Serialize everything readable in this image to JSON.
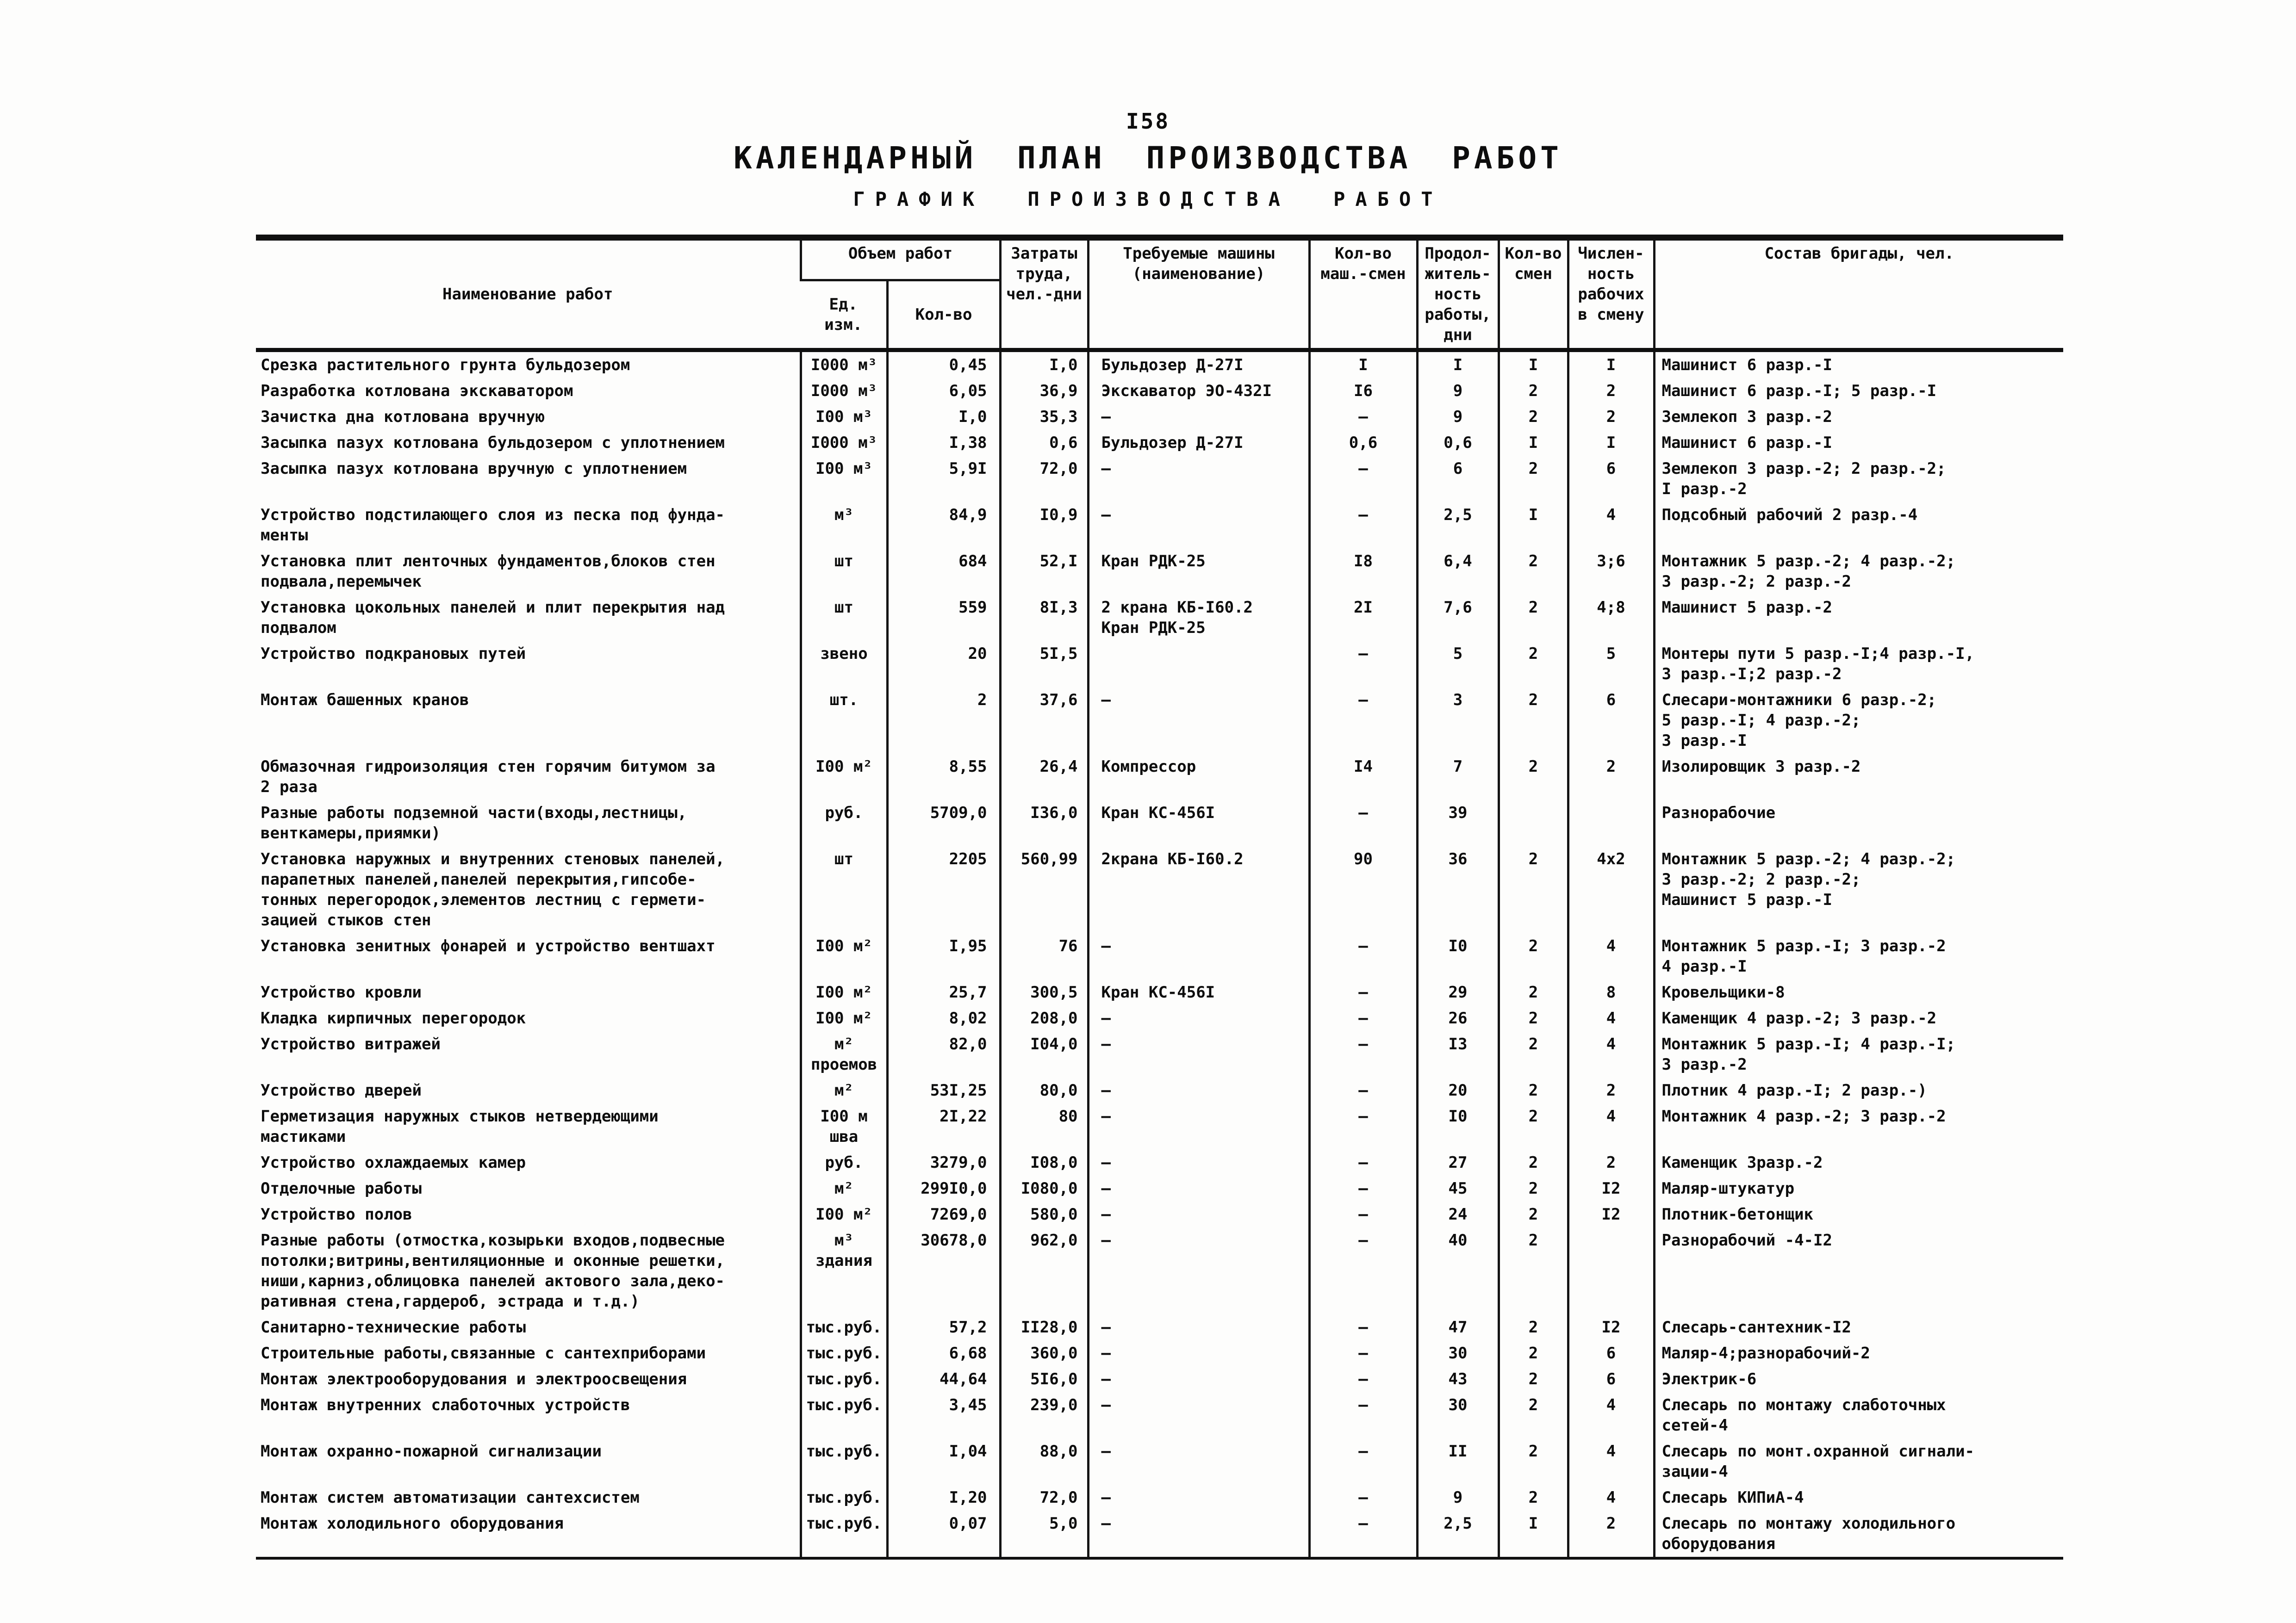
{
  "page": {
    "number": "I58",
    "title": "КАЛЕНДАРНЫЙ ПЛАН ПРОИЗВОДСТВА РАБОТ",
    "subtitle": "ГРАФИК ПРОИЗВОДСТВА РАБОТ"
  },
  "table": {
    "headers": {
      "name": "Наименование работ",
      "volume_group": "Объем работ",
      "unit": "Ед.\nизм.",
      "qty": "Кол-во",
      "labor": "Затраты\nтруда,\nчел.-дни",
      "machines": "Требуемые машины\n(наименование)",
      "machine_shifts": "Кол-во\nмаш.-смен",
      "duration": "Продол-\nжитель-\nность\nработы,\nдни",
      "shifts": "Кол-во\nсмен",
      "crew_size": "Числен-\nность\nрабочих\nв смену",
      "brigade": "Состав  бригады, чел."
    },
    "rows": [
      {
        "name": "Срезка растительного грунта бульдозером",
        "unit": "I000 м³",
        "qty": "0,45",
        "labor": "I,0",
        "machines": "Бульдозер Д-27I",
        "machine_shifts": "I",
        "duration": "I",
        "shifts": "I",
        "crew_size": "I",
        "brigade": "Машинист 6 разр.-I"
      },
      {
        "name": "Разработка котлована экскаватором",
        "unit": "I000 м³",
        "qty": "6,05",
        "labor": "36,9",
        "machines": "Экскаватор ЭО-432I",
        "machine_shifts": "I6",
        "duration": "9",
        "shifts": "2",
        "crew_size": "2",
        "brigade": "Машинист 6 разр.-I; 5 разр.-I"
      },
      {
        "name": "Зачистка дна котлована вручную",
        "unit": "I00 м³",
        "qty": "I,0",
        "labor": "35,3",
        "machines": "–",
        "machine_shifts": "–",
        "duration": "9",
        "shifts": "2",
        "crew_size": "2",
        "brigade": "Землекоп 3 разр.-2"
      },
      {
        "name": "Засыпка пазух котлована бульдозером с уплотнением",
        "unit": "I000 м³",
        "qty": "I,38",
        "labor": "0,6",
        "machines": "Бульдозер Д-27I",
        "machine_shifts": "0,6",
        "duration": "0,6",
        "shifts": "I",
        "crew_size": "I",
        "brigade": "Машинист 6 разр.-I"
      },
      {
        "name": "Засыпка пазух котлована вручную с уплотнением",
        "unit": "I00 м³",
        "qty": "5,9I",
        "labor": "72,0",
        "machines": "–",
        "machine_shifts": "–",
        "duration": "6",
        "shifts": "2",
        "crew_size": "6",
        "brigade": "Землекоп 3 разр.-2; 2 разр.-2;\nI разр.-2"
      },
      {
        "name": "Устройство подстилающего слоя из песка под фунда-\nменты",
        "unit": "м³",
        "qty": "84,9",
        "labor": "I0,9",
        "machines": "–",
        "machine_shifts": "–",
        "duration": "2,5",
        "shifts": "I",
        "crew_size": "4",
        "brigade": "Подсобный рабочий 2 разр.-4"
      },
      {
        "name": "Установка плит ленточных фундаментов,блоков стен\nподвала,перемычек",
        "unit": "шт",
        "qty": "684",
        "labor": "52,I",
        "machines": "Кран РДК-25",
        "machine_shifts": "I8",
        "duration": "6,4",
        "shifts": "2",
        "crew_size": "3;6",
        "brigade": "Монтажник 5 разр.-2; 4 разр.-2;\n3 разр.-2; 2 разр.-2"
      },
      {
        "name": "Установка цокольных панелей и плит перекрытия над\nподвалом",
        "unit": "шт",
        "qty": "559",
        "labor": "8I,3",
        "machines": "2 крана КБ-I60.2\nКран РДК-25",
        "machine_shifts": "2I",
        "duration": "7,6",
        "shifts": "2",
        "crew_size": "4;8",
        "brigade": "Машинист 5 разр.-2"
      },
      {
        "name": "Устройство подкрановых путей",
        "unit": "звено",
        "qty": "20",
        "labor": "5I,5",
        "machines": "",
        "machine_shifts": "–",
        "duration": "5",
        "shifts": "2",
        "crew_size": "5",
        "brigade": "Монтеры пути 5 разр.-I;4 разр.-I,\n3 разр.-I;2 разр.-2"
      },
      {
        "name": "Монтаж башенных кранов",
        "unit": "шт.",
        "qty": "2",
        "labor": "37,6",
        "machines": "–",
        "machine_shifts": "–",
        "duration": "3",
        "shifts": "2",
        "crew_size": "6",
        "brigade": "Слесари-монтажники 6 разр.-2;\n5 разр.-I; 4 разр.-2;\n3 разр.-I"
      },
      {
        "name": "Обмазочная гидроизоляция стен горячим битумом за\n2 раза",
        "unit": "I00 м²",
        "qty": "8,55",
        "labor": "26,4",
        "machines": "Компрессор",
        "machine_shifts": "I4",
        "duration": "7",
        "shifts": "2",
        "crew_size": "2",
        "brigade": "Изолировщик 3 разр.-2"
      },
      {
        "name": "Разные работы подземной части(входы,лестницы,\nвенткамеры,приямки)",
        "unit": "руб.",
        "qty": "5709,0",
        "labor": "I36,0",
        "machines": "Кран КС-456I",
        "machine_shifts": "–",
        "duration": "39",
        "shifts": "",
        "crew_size": "",
        "brigade": "Разнорабочие"
      },
      {
        "name": "Установка наружных и внутренних стеновых панелей,\nпарапетных панелей,панелей перекрытия,гипсобе-\nтонных перегородок,элементов лестниц с гермети-\nзацией стыков стен",
        "unit": "шт",
        "qty": "2205",
        "labor": "560,99",
        "machines": "2крана КБ-I60.2",
        "machine_shifts": "90",
        "duration": "36",
        "shifts": "2",
        "crew_size": "4x2",
        "brigade": "Монтажник 5 разр.-2; 4 разр.-2;\n3 разр.-2; 2 разр.-2;\nМашинист 5 разр.-I"
      },
      {
        "name": "Установка зенитных фонарей и устройство вентшахт",
        "unit": "I00 м²",
        "qty": "I,95",
        "labor": "76",
        "machines": "–",
        "machine_shifts": "–",
        "duration": "I0",
        "shifts": "2",
        "crew_size": "4",
        "brigade": "Монтажник 5 разр.-I; 3 разр.-2\n4 разр.-I"
      },
      {
        "name": "Устройство кровли",
        "unit": "I00 м²",
        "qty": "25,7",
        "labor": "300,5",
        "machines": "Кран КС-456I",
        "machine_shifts": "–",
        "duration": "29",
        "shifts": "2",
        "crew_size": "8",
        "brigade": "Кровельщики-8"
      },
      {
        "name": "Кладка кирпичных перегородок",
        "unit": "I00 м²",
        "qty": "8,02",
        "labor": "208,0",
        "machines": "–",
        "machine_shifts": "–",
        "duration": "26",
        "shifts": "2",
        "crew_size": "4",
        "brigade": "Каменщик 4 разр.-2; 3 разр.-2"
      },
      {
        "name": "Устройство витражей",
        "unit": "м²\nпроемов",
        "qty": "82,0",
        "labor": "I04,0",
        "machines": "–",
        "machine_shifts": "–",
        "duration": "I3",
        "shifts": "2",
        "crew_size": "4",
        "brigade": "Монтажник 5 разр.-I; 4 разр.-I;\n3 разр.-2"
      },
      {
        "name": "Устройство дверей",
        "unit": "м²",
        "qty": "53I,25",
        "labor": "80,0",
        "machines": "–",
        "machine_shifts": "–",
        "duration": "20",
        "shifts": "2",
        "crew_size": "2",
        "brigade": "Плотник 4 разр.-I; 2 разр.-)"
      },
      {
        "name": "Герметизация наружных стыков нетвердеющими\nмастиками",
        "unit": "I00 м\nшва",
        "qty": "2I,22",
        "labor": "80",
        "machines": "–",
        "machine_shifts": "–",
        "duration": "I0",
        "shifts": "2",
        "crew_size": "4",
        "brigade": "Монтажник 4 разр.-2; 3 разр.-2"
      },
      {
        "name": "Устройство охлаждаемых камер",
        "unit": "руб.",
        "qty": "3279,0",
        "labor": "I08,0",
        "machines": "–",
        "machine_shifts": "–",
        "duration": "27",
        "shifts": "2",
        "crew_size": "2",
        "brigade": "Каменщик 3разр.-2"
      },
      {
        "name": "Отделочные работы",
        "unit": "м²",
        "qty": "299I0,0",
        "labor": "I080,0",
        "machines": "–",
        "machine_shifts": "–",
        "duration": "45",
        "shifts": "2",
        "crew_size": "I2",
        "brigade": "Маляр-штукатур"
      },
      {
        "name": "Устройство полов",
        "unit": "I00 м²",
        "qty": "7269,0",
        "labor": "580,0",
        "machines": "–",
        "machine_shifts": "–",
        "duration": "24",
        "shifts": "2",
        "crew_size": "I2",
        "brigade": "Плотник-бетонщик"
      },
      {
        "name": "Разные работы (отмостка,козырьки входов,подвесные\nпотолки;витрины,вентиляционные и оконные решетки,\nниши,карниз,облицовка панелей актового зала,деко-\nративная стена,гардероб, эстрада и т.д.)",
        "unit": "м³\nздания",
        "qty": "30678,0",
        "labor": "962,0",
        "machines": "–",
        "machine_shifts": "–",
        "duration": "40",
        "shifts": "2",
        "crew_size": "",
        "brigade": "Разнорабочий -4-I2"
      },
      {
        "name": "Санитарно-технические работы",
        "unit": "тыс.руб.",
        "qty": "57,2",
        "labor": "II28,0",
        "machines": "–",
        "machine_shifts": "–",
        "duration": "47",
        "shifts": "2",
        "crew_size": "I2",
        "brigade": "Слесарь-сантехник-I2"
      },
      {
        "name": "Строительные работы,связанные с сантехприборами",
        "unit": "тыс.руб.",
        "qty": "6,68",
        "labor": "360,0",
        "machines": "–",
        "machine_shifts": "–",
        "duration": "30",
        "shifts": "2",
        "crew_size": "6",
        "brigade": "Маляр-4;разнорабочий-2"
      },
      {
        "name": "Монтаж электрооборудования и электроосвещения",
        "unit": "тыс.руб.",
        "qty": "44,64",
        "labor": "5I6,0",
        "machines": "–",
        "machine_shifts": "–",
        "duration": "43",
        "shifts": "2",
        "crew_size": "6",
        "brigade": "Электрик-6"
      },
      {
        "name": "Монтаж внутренних слаботочных устройств",
        "unit": "тыс.руб.",
        "qty": "3,45",
        "labor": "239,0",
        "machines": "–",
        "machine_shifts": "–",
        "duration": "30",
        "shifts": "2",
        "crew_size": "4",
        "brigade": "Слесарь по монтажу слаботочных\nсетей-4"
      },
      {
        "name": "Монтаж охранно-пожарной сигнализации",
        "unit": "тыс.руб.",
        "qty": "I,04",
        "labor": "88,0",
        "machines": "–",
        "machine_shifts": "–",
        "duration": "II",
        "shifts": "2",
        "crew_size": "4",
        "brigade": "Слесарь по монт.охранной сигнали-\nзации-4"
      },
      {
        "name": "Монтаж систем автоматизации сантехсистем",
        "unit": "тыс.руб.",
        "qty": "I,20",
        "labor": "72,0",
        "machines": "–",
        "machine_shifts": "–",
        "duration": "9",
        "shifts": "2",
        "crew_size": "4",
        "brigade": "Слесарь КИПиА-4"
      },
      {
        "name": "Монтаж холодильного оборудования",
        "unit": "тыс.руб.",
        "qty": "0,07",
        "labor": "5,0",
        "machines": "–",
        "machine_shifts": "–",
        "duration": "2,5",
        "shifts": "I",
        "crew_size": "2",
        "brigade": "Слесарь по монтажу холодильного\nоборудования"
      }
    ]
  }
}
